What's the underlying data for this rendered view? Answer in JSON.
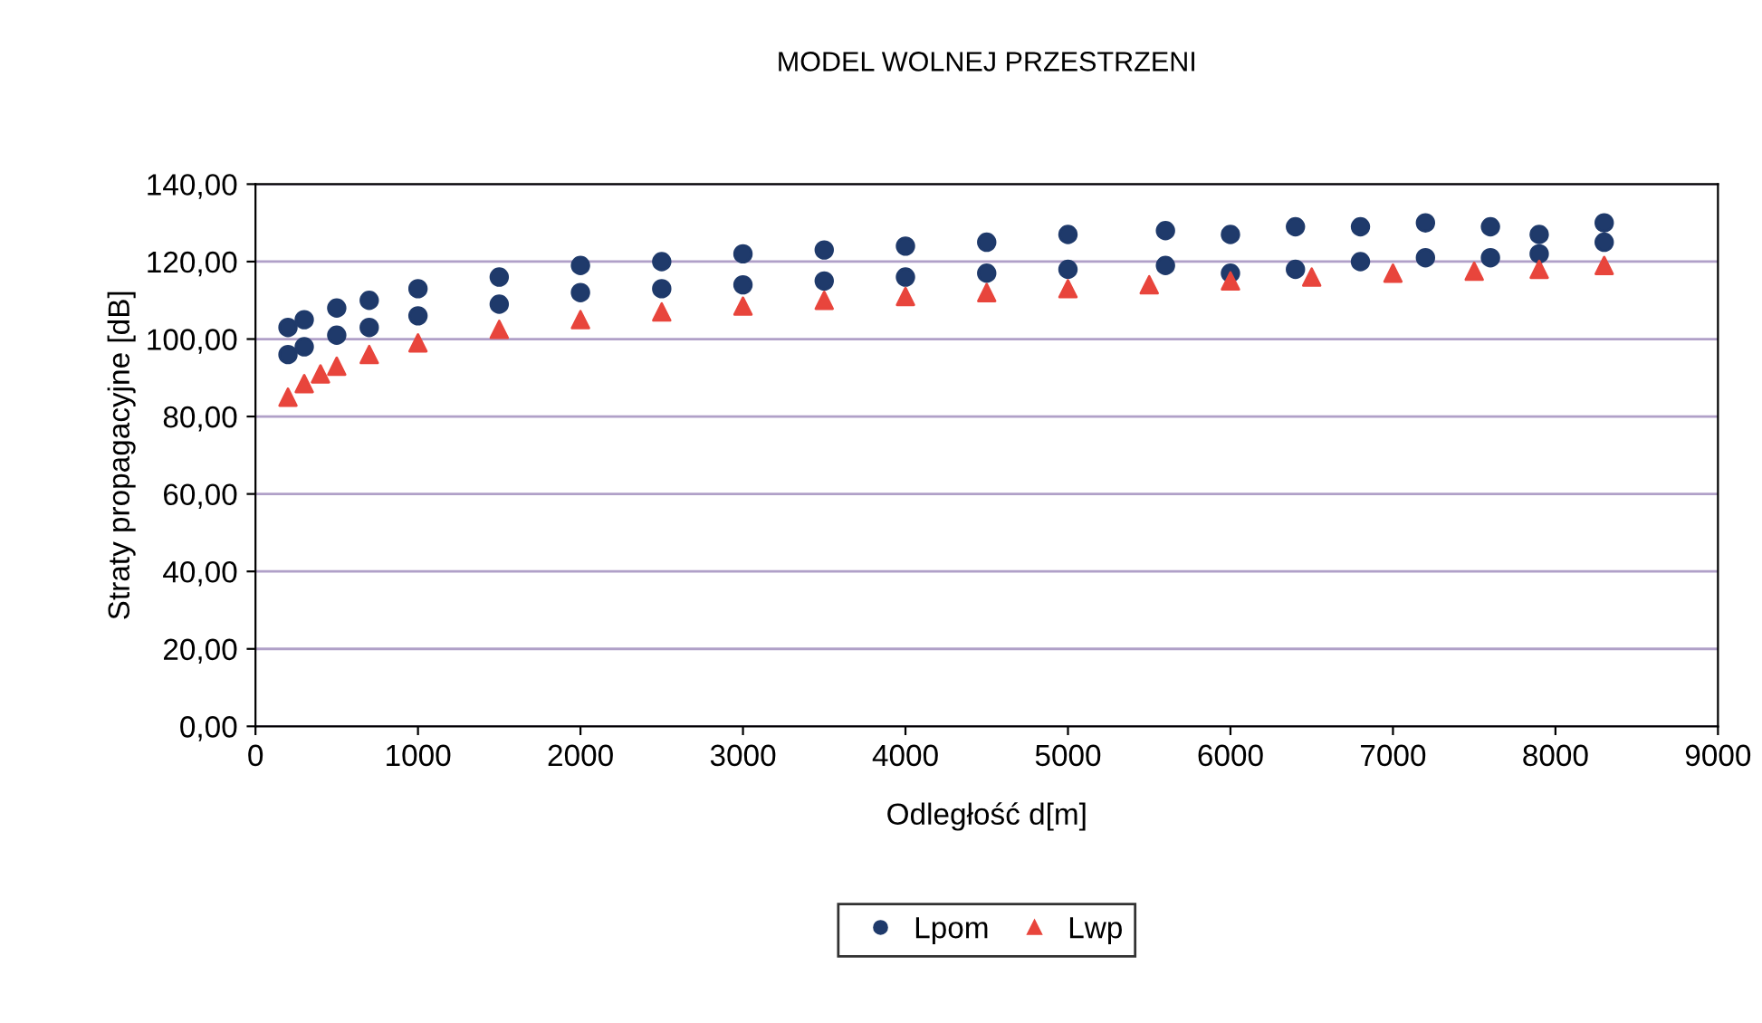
{
  "chart_data": {
    "type": "scatter",
    "title": "MODEL WOLNEJ PRZESTRZENI",
    "xlabel": "Odległość d[m]",
    "ylabel": "Straty propagacyjne [dB]",
    "xlim": [
      0,
      9000
    ],
    "xticks": [
      0,
      1000,
      2000,
      3000,
      4000,
      5000,
      6000,
      7000,
      8000,
      9000
    ],
    "ylim": [
      0,
      140
    ],
    "yticks": [
      {
        "value": 0,
        "label": "0,00"
      },
      {
        "value": 20,
        "label": "20,00"
      },
      {
        "value": 40,
        "label": "40,00"
      },
      {
        "value": 60,
        "label": "60,00"
      },
      {
        "value": 80,
        "label": "80,00"
      },
      {
        "value": 100,
        "label": "100,00"
      },
      {
        "value": 120,
        "label": "120,00"
      },
      {
        "value": 140,
        "label": "140,00"
      }
    ],
    "grid": "y",
    "legend": "bottom",
    "series": [
      {
        "name": "Lpom",
        "color": "#1f3a6b",
        "marker": "circle",
        "x": [
          200,
          200,
          300,
          300,
          500,
          500,
          700,
          700,
          1000,
          1000,
          1500,
          1500,
          2000,
          2000,
          2500,
          2500,
          3000,
          3000,
          3500,
          3500,
          4000,
          4000,
          4500,
          4500,
          5000,
          5000,
          5600,
          5600,
          6000,
          6000,
          6400,
          6400,
          6800,
          6800,
          7200,
          7200,
          7600,
          7600,
          7900,
          7900,
          8300,
          8300
        ],
        "values": [
          96,
          103,
          98,
          105,
          101,
          108,
          103,
          110,
          106,
          113,
          109,
          116,
          112,
          119,
          113,
          120,
          114,
          122,
          115,
          123,
          116,
          124,
          117,
          125,
          118,
          127,
          119,
          128,
          117,
          127,
          118,
          129,
          120,
          129,
          121,
          130,
          121,
          129,
          122,
          127,
          125,
          130
        ]
      },
      {
        "name": "Lwp",
        "color": "#e8453c",
        "marker": "triangle",
        "x": [
          200,
          300,
          400,
          500,
          700,
          1000,
          1500,
          2000,
          2500,
          3000,
          3500,
          4000,
          4500,
          5000,
          5500,
          6000,
          6500,
          7000,
          7500,
          7900,
          8300
        ],
        "values": [
          85,
          88.5,
          91,
          93,
          96,
          99,
          102.5,
          105,
          107,
          108.5,
          110,
          111,
          112,
          113,
          114,
          115,
          116,
          117,
          117.5,
          118,
          119
        ]
      }
    ]
  }
}
